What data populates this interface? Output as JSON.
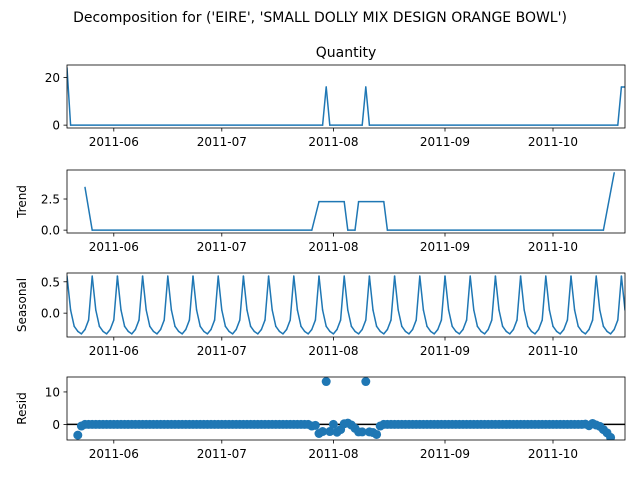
{
  "chart_data": {
    "type": "line",
    "title": "Decomposition for ('EIRE', 'SMALL DOLLY MIX DESIGN ORANGE BOWL')",
    "date_range": [
      "2011-05-19",
      "2011-10-21"
    ],
    "x_ticks": [
      "2011-06",
      "2011-07",
      "2011-08",
      "2011-09",
      "2011-10"
    ],
    "x_tick_dates": [
      "2011-06-01",
      "2011-07-01",
      "2011-08-01",
      "2011-09-01",
      "2011-10-01"
    ],
    "series_color": "#1f77b4",
    "panels": [
      {
        "key": "observed",
        "title": "Quantity",
        "ylabel": "",
        "style": "line",
        "ylim": [
          -1.2,
          25.2
        ],
        "yticks": [
          0,
          20
        ],
        "ytick_labels": [
          "0",
          "20"
        ],
        "points": [
          [
            "2011-05-19",
            24
          ],
          [
            "2011-05-20",
            0
          ],
          [
            "2011-07-29",
            0
          ],
          [
            "2011-07-30",
            16
          ],
          [
            "2011-07-31",
            0
          ],
          [
            "2011-08-09",
            0
          ],
          [
            "2011-08-10",
            16
          ],
          [
            "2011-08-11",
            0
          ],
          [
            "2011-10-19",
            0
          ],
          [
            "2011-10-20",
            16
          ],
          [
            "2011-10-21",
            16
          ]
        ]
      },
      {
        "key": "trend",
        "title": "",
        "ylabel": "Trend",
        "style": "line",
        "ylim": [
          -0.23,
          4.83
        ],
        "yticks": [
          0,
          2.5
        ],
        "ytick_labels": [
          "0.0",
          "2.5"
        ],
        "points": [
          [
            "2011-05-24",
            3.43
          ],
          [
            "2011-05-26",
            0
          ],
          [
            "2011-07-26",
            0
          ],
          [
            "2011-07-28",
            2.29
          ],
          [
            "2011-08-04",
            2.29
          ],
          [
            "2011-08-05",
            0
          ],
          [
            "2011-08-07",
            0
          ],
          [
            "2011-08-08",
            2.29
          ],
          [
            "2011-08-15",
            2.29
          ],
          [
            "2011-08-16",
            0
          ],
          [
            "2011-10-15",
            0
          ],
          [
            "2011-10-18",
            4.6
          ]
        ]
      },
      {
        "key": "seasonal",
        "title": "",
        "ylabel": "Seasonal",
        "style": "seasonal",
        "ylim": [
          -0.38,
          0.64
        ],
        "yticks": [
          0,
          0.5
        ],
        "ytick_labels": [
          "0.0",
          "0.5"
        ],
        "period_days": 7,
        "first_peak": "2011-05-19",
        "pattern": [
          0.59,
          0.05,
          -0.21,
          -0.29,
          -0.33,
          -0.26,
          -0.11
        ]
      },
      {
        "key": "resid",
        "title": "",
        "ylabel": "Resid",
        "style": "scatter",
        "ylim": [
          -4.8,
          14.6
        ],
        "yticks": [
          0,
          10
        ],
        "ytick_labels": [
          "0",
          "10"
        ],
        "zero_line": true,
        "marker_step_days": 1,
        "points": [
          [
            "2011-05-22",
            -3.3
          ],
          [
            "2011-05-23",
            -0.5
          ],
          [
            "2011-07-26",
            -0.5
          ],
          [
            "2011-07-27",
            -0.3
          ],
          [
            "2011-07-28",
            -2.8
          ],
          [
            "2011-07-29",
            -2.2
          ],
          [
            "2011-07-30",
            13.2
          ],
          [
            "2011-07-31",
            -2.2
          ],
          [
            "2011-08-02",
            -2.4
          ],
          [
            "2011-08-03",
            -1.6
          ],
          [
            "2011-08-04",
            0.2
          ],
          [
            "2011-08-05",
            0.4
          ],
          [
            "2011-08-06",
            -0.2
          ],
          [
            "2011-08-07",
            -1.2
          ],
          [
            "2011-08-08",
            -2.3
          ],
          [
            "2011-08-09",
            -2.3
          ],
          [
            "2011-08-10",
            13.2
          ],
          [
            "2011-08-11",
            -2.3
          ],
          [
            "2011-08-12",
            -2.5
          ],
          [
            "2011-08-13",
            -3.1
          ],
          [
            "2011-08-14",
            -0.5
          ],
          [
            "2011-10-10",
            0.1
          ],
          [
            "2011-10-11",
            -0.4
          ],
          [
            "2011-10-12",
            0.3
          ],
          [
            "2011-10-13",
            -0.2
          ],
          [
            "2011-10-14",
            -0.6
          ],
          [
            "2011-10-15",
            -1.6
          ],
          [
            "2011-10-16",
            -2.6
          ],
          [
            "2011-10-17",
            -4.0
          ]
        ]
      }
    ]
  }
}
